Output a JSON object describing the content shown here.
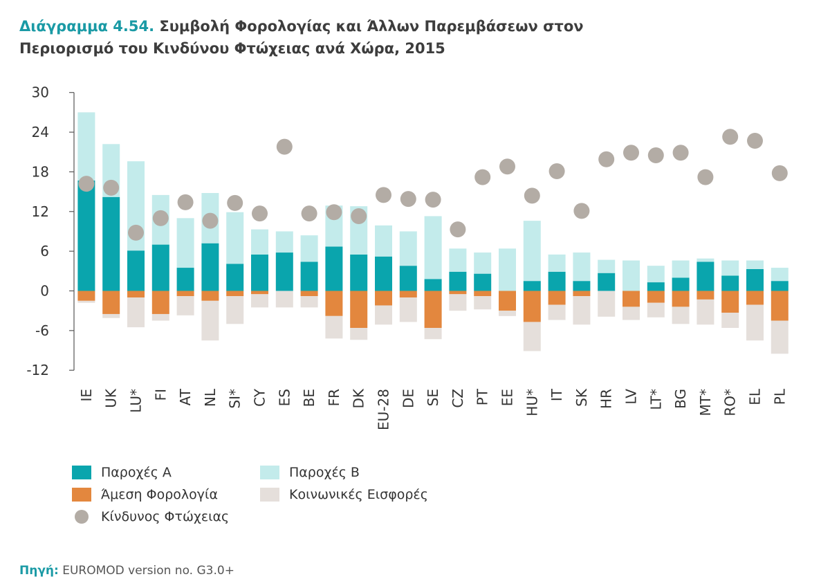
{
  "title": {
    "label": "Διάγραμμα 4.54.",
    "line1": "Συμβολή Φορολογίας και Άλλων Παρεμβάσεων στον",
    "line2": "Περιορισμό του Κινδύνου Φτώχειας ανά Χώρα, 2015"
  },
  "source": {
    "label": "Πηγή:",
    "text": "EUROMOD version no. G3.0+"
  },
  "colors": {
    "benefits_a": "#0aa5ad",
    "benefits_b": "#c3ebeb",
    "direct_tax": "#e3873e",
    "social_contrib": "#e5dfdb",
    "poverty_risk": "#b3aca5",
    "axis": "#555555"
  },
  "chart_data": {
    "type": "bar",
    "stacked": true,
    "ylim": [
      -12,
      30
    ],
    "yticks": [
      30,
      24,
      18,
      12,
      6,
      0,
      -6,
      -12
    ],
    "categories": [
      "IE",
      "UK",
      "LU*",
      "FI",
      "AT",
      "NL",
      "SI*",
      "CY",
      "ES",
      "BE",
      "FR",
      "DK",
      "EU-28",
      "DE",
      "SE",
      "CZ",
      "PT",
      "EE",
      "HU*",
      "IT",
      "SK",
      "HR",
      "LV",
      "LT*",
      "BG",
      "MT*",
      "RO*",
      "EL",
      "PL"
    ],
    "series": [
      {
        "name": "Παροχές Α",
        "key": "benefits_a",
        "values": [
          16.7,
          14.2,
          6.1,
          7.0,
          3.5,
          7.2,
          4.1,
          5.5,
          5.8,
          4.4,
          6.7,
          5.5,
          5.2,
          3.8,
          1.8,
          2.9,
          2.6,
          0.0,
          1.5,
          2.9,
          1.5,
          2.7,
          0.0,
          1.3,
          2.0,
          4.4,
          2.3,
          3.3,
          1.5
        ]
      },
      {
        "name": "Παροχές Β",
        "key": "benefits_b",
        "values": [
          10.3,
          8.0,
          13.5,
          7.5,
          7.5,
          7.6,
          7.8,
          3.8,
          3.2,
          4.0,
          6.2,
          7.3,
          4.7,
          5.2,
          9.5,
          3.5,
          3.2,
          6.4,
          9.1,
          2.6,
          4.3,
          2.0,
          4.6,
          2.5,
          2.6,
          0.5,
          2.3,
          1.3,
          2.0
        ]
      },
      {
        "name": "Άμεση Φορολογία",
        "key": "direct_tax",
        "values": [
          -1.5,
          -3.5,
          -1.0,
          -3.5,
          -0.8,
          -1.5,
          -0.8,
          -0.5,
          0.0,
          -0.8,
          -3.8,
          -5.6,
          -2.2,
          -1.0,
          -5.6,
          -0.5,
          -0.8,
          -3.0,
          -4.7,
          -2.1,
          -0.8,
          0.0,
          -2.4,
          -1.8,
          -2.4,
          -1.3,
          -3.3,
          -2.1,
          -4.5
        ]
      },
      {
        "name": "Κοινωνικές Εισφορές",
        "key": "social_contrib",
        "values": [
          -0.3,
          -0.6,
          -4.5,
          -1.0,
          -2.9,
          -6.0,
          -4.2,
          -2.0,
          -2.5,
          -1.7,
          -3.4,
          -1.8,
          -2.9,
          -3.7,
          -1.7,
          -2.5,
          -2.0,
          -0.8,
          -4.4,
          -2.3,
          -4.3,
          -3.9,
          -2.0,
          -2.2,
          -2.6,
          -3.8,
          -2.3,
          -5.4,
          -5.0
        ]
      },
      {
        "name": "Κίνδυνος Φτώχειας",
        "key": "poverty_risk",
        "type": "scatter",
        "values": [
          16.2,
          15.6,
          8.8,
          11.0,
          13.4,
          10.6,
          13.3,
          11.7,
          21.8,
          11.7,
          11.9,
          11.3,
          14.5,
          13.9,
          13.8,
          9.3,
          17.2,
          18.8,
          14.4,
          18.1,
          12.1,
          19.9,
          20.9,
          20.5,
          20.9,
          17.2,
          23.3,
          22.7,
          17.8
        ]
      }
    ]
  },
  "legend": {
    "items": [
      {
        "label": "Παροχές Α",
        "key": "benefits_a"
      },
      {
        "label": "Άμεση Φορολογία",
        "key": "direct_tax"
      },
      {
        "label": "Κίνδυνος Φτώχειας",
        "key": "poverty_risk"
      },
      {
        "label": "Παροχές Β",
        "key": "benefits_b"
      },
      {
        "label": "Κοινωνικές Εισφορές",
        "key": "social_contrib"
      }
    ]
  }
}
